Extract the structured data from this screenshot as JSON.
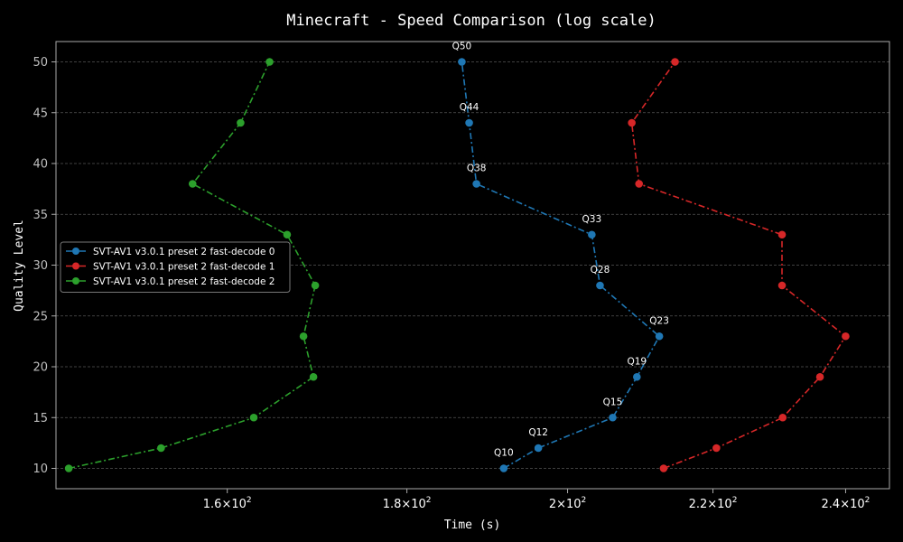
{
  "chart_data": {
    "type": "line",
    "title": "Minecraft - Speed Comparison (log scale)",
    "xlabel": "Time (s)",
    "ylabel": "Quality Level",
    "xscale": "log",
    "xlim": [
      143,
      247
    ],
    "ylim": [
      8,
      52
    ],
    "grid": true,
    "legend_position": "center-left",
    "x_ticks": [
      {
        "value": 160,
        "base": "1.6",
        "exp": "2"
      },
      {
        "value": 180,
        "base": "1.8",
        "exp": "2"
      },
      {
        "value": 200,
        "base": "2",
        "exp": "2"
      },
      {
        "value": 220,
        "base": "2.2",
        "exp": "2"
      },
      {
        "value": 240,
        "base": "2.4",
        "exp": "2"
      }
    ],
    "x_tick_suffix": "×10",
    "y_ticks": [
      "10",
      "15",
      "20",
      "25",
      "30",
      "35",
      "40",
      "45",
      "50"
    ],
    "y_tick_values": [
      10,
      15,
      20,
      25,
      30,
      35,
      40,
      45,
      50
    ],
    "series": [
      {
        "name": "SVT-AV1 v3.0.1 preset 2 fast-decode 0",
        "color": "#1f77b4",
        "points": [
          {
            "x": 191.8,
            "y": 10,
            "label": "Q10"
          },
          {
            "x": 196.2,
            "y": 12,
            "label": "Q12"
          },
          {
            "x": 206.0,
            "y": 15,
            "label": "Q15"
          },
          {
            "x": 209.3,
            "y": 19,
            "label": "Q19"
          },
          {
            "x": 212.4,
            "y": 23,
            "label": "Q23"
          },
          {
            "x": 204.3,
            "y": 28,
            "label": "Q28"
          },
          {
            "x": 203.2,
            "y": 33,
            "label": "Q33"
          },
          {
            "x": 188.4,
            "y": 38,
            "label": "Q38"
          },
          {
            "x": 187.5,
            "y": 44,
            "label": "Q44"
          },
          {
            "x": 186.6,
            "y": 50,
            "label": "Q50"
          }
        ]
      },
      {
        "name": "SVT-AV1 v3.0.1 preset 2 fast-decode 1",
        "color": "#d62728",
        "points": [
          {
            "x": 213.0,
            "y": 10
          },
          {
            "x": 220.5,
            "y": 12
          },
          {
            "x": 230.3,
            "y": 15
          },
          {
            "x": 236.0,
            "y": 19
          },
          {
            "x": 240.0,
            "y": 23
          },
          {
            "x": 230.2,
            "y": 28
          },
          {
            "x": 230.2,
            "y": 33
          },
          {
            "x": 209.6,
            "y": 38
          },
          {
            "x": 208.6,
            "y": 44
          },
          {
            "x": 214.6,
            "y": 50
          }
        ]
      },
      {
        "name": "SVT-AV1 v3.0.1 preset 2 fast-decode 2",
        "color": "#2ca02c",
        "points": [
          {
            "x": 144.2,
            "y": 10
          },
          {
            "x": 153.2,
            "y": 12
          },
          {
            "x": 162.8,
            "y": 15
          },
          {
            "x": 169.3,
            "y": 19
          },
          {
            "x": 168.2,
            "y": 23
          },
          {
            "x": 169.5,
            "y": 28
          },
          {
            "x": 166.4,
            "y": 33
          },
          {
            "x": 156.4,
            "y": 38
          },
          {
            "x": 161.4,
            "y": 44
          },
          {
            "x": 164.5,
            "y": 50
          }
        ]
      }
    ]
  }
}
